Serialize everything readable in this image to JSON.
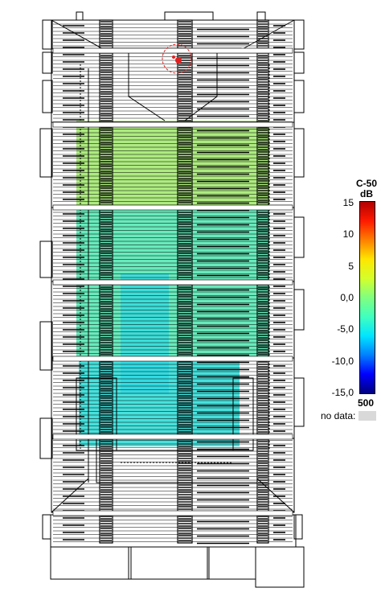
{
  "legend": {
    "parameter": "C-50",
    "unit": "dB",
    "ticks": [
      "15",
      "10",
      "5",
      "0,0",
      "-5,0",
      "-10,0",
      "-15,0"
    ],
    "tick_values": [
      15,
      10,
      5,
      0,
      -5,
      -10,
      -15
    ],
    "range": [
      -15,
      15
    ],
    "frequency": "500",
    "no_data_label": "no data:",
    "no_data_color": "#d9d9d9",
    "colormap": [
      "#00007f",
      "#0000ff",
      "#0080ff",
      "#00e5ff",
      "#40ffbf",
      "#80ff80",
      "#d4ff2b",
      "#ffe600",
      "#ff8000",
      "#ff1a00",
      "#b30000"
    ]
  },
  "map_colors": {
    "upper_zone": "#9fe86a",
    "middle_zone": "#4ee6b0",
    "lower_zone": "#27dcd6",
    "source_marker": "#e02020"
  }
}
